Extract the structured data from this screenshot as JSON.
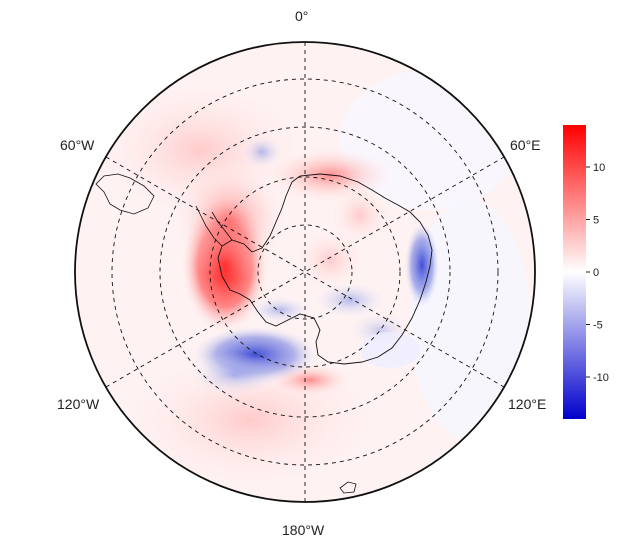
{
  "map": {
    "projection": "south-polar-stereographic",
    "longitude_labels": {
      "top": "0°",
      "upper_left": "60°W",
      "upper_right": "60°E",
      "lower_left": "120°W",
      "lower_right": "120°E",
      "bottom": "180°W"
    },
    "graticule": {
      "meridians_deg": [
        0,
        30,
        60,
        90,
        120,
        150,
        180,
        210,
        240,
        270,
        300,
        330
      ],
      "parallels": "dashed",
      "style": "dashed"
    },
    "field": {
      "colormap": [
        "#0000cc",
        "#ffffff",
        "#ff0000"
      ],
      "value_range": [
        -14,
        14
      ]
    }
  },
  "colorbar": {
    "ticks": [
      10,
      5,
      0,
      -5,
      -10
    ],
    "tick_labels": [
      "10",
      "5",
      "0",
      "-5",
      "-10"
    ],
    "min": -14,
    "max": 14,
    "colors": [
      "#0000cc",
      "#ffffff",
      "#ff0000"
    ]
  }
}
